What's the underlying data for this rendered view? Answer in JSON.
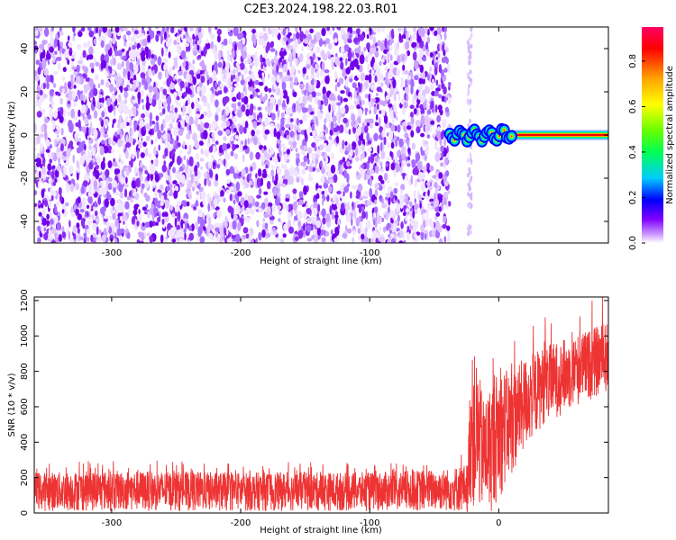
{
  "title": "C2E3.2024.198.22.03.R01",
  "chart_data": [
    {
      "type": "heatmap",
      "xlabel": "Height of straight line (km)",
      "ylabel": "Frequency (Hz)",
      "xlim": [
        -360,
        85
      ],
      "ylim": [
        -50,
        50
      ],
      "x_ticks": [
        -300,
        -200,
        -100,
        0
      ],
      "x_tick_labels": [
        "-300",
        "-200",
        "-100",
        "0"
      ],
      "y_ticks": [
        -40,
        -20,
        0,
        20,
        40
      ],
      "y_tick_labels": [
        "-40",
        "-20",
        "0",
        "20",
        "40"
      ],
      "colorbar": {
        "label": "Normalized spectral amplitude",
        "range": [
          0,
          0.95
        ],
        "ticks": [
          0.0,
          0.2,
          0.4,
          0.6,
          0.8
        ],
        "tick_labels": [
          "0.0",
          "0.2",
          "0.4",
          "0.6",
          "0.8"
        ],
        "colors": [
          "#ffffff",
          "#cc99ff",
          "#7f00ff",
          "#0000ff",
          "#00ccff",
          "#00ff55",
          "#66ff00",
          "#ffff00",
          "#ffa500",
          "#ff0000",
          "#ff0066"
        ]
      },
      "regions": [
        {
          "x_range": [
            -360,
            -38
          ],
          "freq_range": [
            -50,
            50
          ],
          "amplitude": "0.0-0.12 broadband noise"
        },
        {
          "x_range": [
            -24,
            -21
          ],
          "freq_range": [
            -50,
            50
          ],
          "amplitude": "0.0-0.05 faint column"
        },
        {
          "x_range": [
            -38,
            10
          ],
          "freq_range": [
            -4,
            6
          ],
          "amplitude": "0.3-0.9 signal"
        },
        {
          "x_range": [
            10,
            85
          ],
          "freq_range": [
            -1.5,
            1.5
          ],
          "amplitude": "0.95 carrier line"
        }
      ],
      "grid": false
    },
    {
      "type": "line",
      "xlabel": "Height of straight line (km)",
      "ylabel": "SNR (10 * v/v)",
      "xlim": [
        -360,
        85
      ],
      "ylim": [
        0,
        1220
      ],
      "x_ticks": [
        -300,
        -200,
        -100,
        0
      ],
      "x_tick_labels": [
        "-300",
        "-200",
        "-100",
        "0"
      ],
      "y_ticks": [
        0,
        200,
        400,
        600,
        800,
        1000,
        1200
      ],
      "y_tick_labels": [
        "0",
        "200",
        "400",
        "600",
        "800",
        "1000",
        "1200"
      ],
      "series_color": "#ee3333",
      "envelope": [
        {
          "x": -360,
          "low": 10,
          "high": 230
        },
        {
          "x": -300,
          "low": 10,
          "high": 240
        },
        {
          "x": -200,
          "low": 10,
          "high": 230
        },
        {
          "x": -100,
          "low": 10,
          "high": 230
        },
        {
          "x": -40,
          "low": 10,
          "high": 250
        },
        {
          "x": -24,
          "low": 0,
          "high": 280
        },
        {
          "x": -22,
          "low": 50,
          "high": 860
        },
        {
          "x": -18,
          "low": 0,
          "high": 900
        },
        {
          "x": -12,
          "low": 0,
          "high": 650
        },
        {
          "x": -6,
          "low": 0,
          "high": 720
        },
        {
          "x": 0,
          "low": 80,
          "high": 820
        },
        {
          "x": 10,
          "low": 200,
          "high": 800
        },
        {
          "x": 20,
          "low": 350,
          "high": 880
        },
        {
          "x": 35,
          "low": 500,
          "high": 940
        },
        {
          "x": 50,
          "low": 560,
          "high": 980
        },
        {
          "x": 65,
          "low": 620,
          "high": 1020
        },
        {
          "x": 85,
          "low": 680,
          "high": 1080
        }
      ],
      "grid": false
    }
  ]
}
